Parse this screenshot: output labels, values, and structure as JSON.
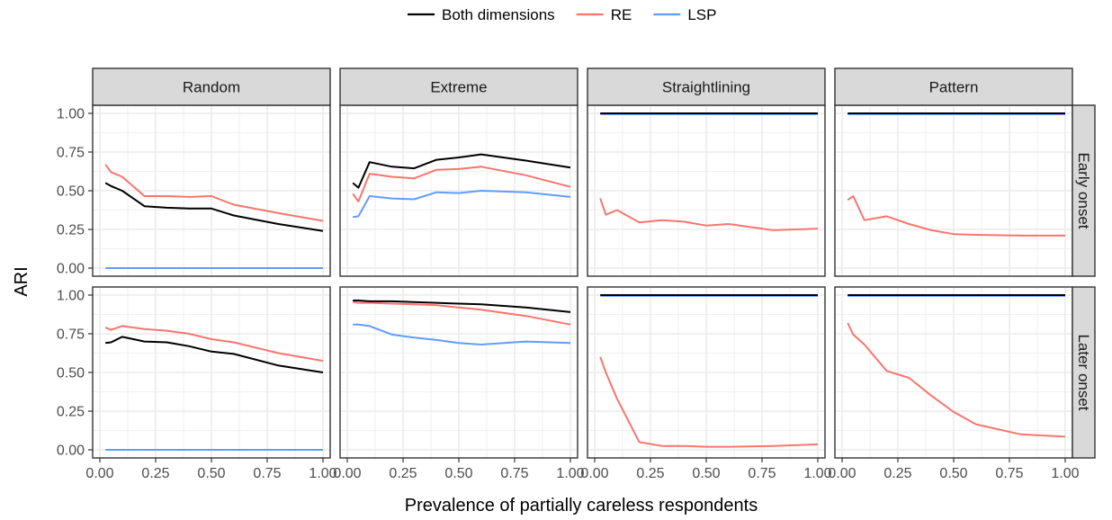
{
  "chart_data": {
    "type": "line",
    "xlabel": "Prevalence of partially careless respondents",
    "ylabel": "ARI",
    "xlim": [
      0,
      1
    ],
    "ylim": [
      0,
      1
    ],
    "x_ticks": [
      "0.00",
      "0.25",
      "0.50",
      "0.75",
      "1.00"
    ],
    "y_ticks": [
      "0.00",
      "0.25",
      "0.50",
      "0.75",
      "1.00"
    ],
    "grid": true,
    "legend_position": "top",
    "legend": [
      {
        "name": "Both dimensions",
        "color": "#000000"
      },
      {
        "name": "RE",
        "color": "#F8766D"
      },
      {
        "name": "LSP",
        "color": "#619CFF"
      }
    ],
    "columns": [
      "Random",
      "Extreme",
      "Straightlining",
      "Pattern"
    ],
    "rows": [
      "Early onset",
      "Later onset"
    ],
    "x": [
      0.025,
      0.05,
      0.1,
      0.2,
      0.3,
      0.4,
      0.5,
      0.6,
      0.8,
      1.0
    ],
    "panels": [
      {
        "row": "Early onset",
        "column": "Random",
        "series": [
          {
            "name": "Both dimensions",
            "values": [
              0.55,
              0.53,
              0.5,
              0.4,
              0.39,
              0.385,
              0.385,
              0.34,
              0.285,
              0.24
            ]
          },
          {
            "name": "RE",
            "values": [
              0.67,
              0.62,
              0.59,
              0.465,
              0.465,
              0.46,
              0.465,
              0.41,
              0.355,
              0.305
            ]
          },
          {
            "name": "LSP",
            "values": [
              0.0,
              0.0,
              0.0,
              0.0,
              0.0,
              0.0,
              0.0,
              0.0,
              0.0,
              0.0
            ]
          }
        ]
      },
      {
        "row": "Early onset",
        "column": "Extreme",
        "series": [
          {
            "name": "Both dimensions",
            "values": [
              0.55,
              0.52,
              0.685,
              0.655,
              0.645,
              0.7,
              0.715,
              0.735,
              0.695,
              0.65
            ]
          },
          {
            "name": "RE",
            "values": [
              0.48,
              0.43,
              0.61,
              0.59,
              0.58,
              0.635,
              0.64,
              0.655,
              0.6,
              0.525
            ]
          },
          {
            "name": "LSP",
            "values": [
              0.33,
              0.335,
              0.465,
              0.45,
              0.445,
              0.49,
              0.485,
              0.5,
              0.49,
              0.46
            ]
          }
        ]
      },
      {
        "row": "Early onset",
        "column": "Straightlining",
        "series": [
          {
            "name": "Both dimensions",
            "values": [
              1.0,
              1.0,
              1.0,
              1.0,
              1.0,
              1.0,
              1.0,
              1.0,
              1.0,
              1.0
            ]
          },
          {
            "name": "RE",
            "values": [
              0.45,
              0.345,
              0.375,
              0.295,
              0.31,
              0.3,
              0.275,
              0.285,
              0.245,
              0.255
            ]
          },
          {
            "name": "LSP",
            "values": [
              0.995,
              0.995,
              0.995,
              0.995,
              0.995,
              0.995,
              0.995,
              0.995,
              0.995,
              0.995
            ]
          }
        ]
      },
      {
        "row": "Early onset",
        "column": "Pattern",
        "series": [
          {
            "name": "Both dimensions",
            "values": [
              1.0,
              1.0,
              1.0,
              1.0,
              1.0,
              1.0,
              1.0,
              1.0,
              1.0,
              1.0
            ]
          },
          {
            "name": "RE",
            "values": [
              0.44,
              0.465,
              0.31,
              0.335,
              0.285,
              0.245,
              0.22,
              0.215,
              0.21,
              0.21
            ]
          },
          {
            "name": "LSP",
            "values": [
              0.995,
              0.995,
              0.995,
              0.995,
              0.995,
              0.995,
              0.995,
              0.995,
              0.995,
              0.995
            ]
          }
        ]
      },
      {
        "row": "Later onset",
        "column": "Random",
        "series": [
          {
            "name": "Both dimensions",
            "values": [
              0.69,
              0.695,
              0.73,
              0.7,
              0.695,
              0.67,
              0.635,
              0.62,
              0.545,
              0.5
            ]
          },
          {
            "name": "RE",
            "values": [
              0.79,
              0.775,
              0.8,
              0.78,
              0.77,
              0.75,
              0.715,
              0.695,
              0.625,
              0.575
            ]
          },
          {
            "name": "LSP",
            "values": [
              0.0,
              0.0,
              0.0,
              0.0,
              0.0,
              0.0,
              0.0,
              0.0,
              0.0,
              0.0
            ]
          }
        ]
      },
      {
        "row": "Later onset",
        "column": "Extreme",
        "series": [
          {
            "name": "Both dimensions",
            "values": [
              0.965,
              0.965,
              0.96,
              0.96,
              0.955,
              0.95,
              0.945,
              0.94,
              0.92,
              0.89
            ]
          },
          {
            "name": "RE",
            "values": [
              0.955,
              0.95,
              0.95,
              0.945,
              0.94,
              0.935,
              0.92,
              0.905,
              0.865,
              0.81
            ]
          },
          {
            "name": "LSP",
            "values": [
              0.81,
              0.81,
              0.8,
              0.745,
              0.725,
              0.71,
              0.69,
              0.68,
              0.7,
              0.69
            ]
          }
        ]
      },
      {
        "row": "Later onset",
        "column": "Straightlining",
        "series": [
          {
            "name": "Both dimensions",
            "values": [
              1.0,
              1.0,
              1.0,
              1.0,
              1.0,
              1.0,
              1.0,
              1.0,
              1.0,
              1.0
            ]
          },
          {
            "name": "RE",
            "values": [
              0.6,
              0.5,
              0.33,
              0.05,
              0.025,
              0.025,
              0.02,
              0.02,
              0.025,
              0.035
            ]
          },
          {
            "name": "LSP",
            "values": [
              0.995,
              0.995,
              0.995,
              0.995,
              0.995,
              0.995,
              0.995,
              0.995,
              0.995,
              0.995
            ]
          }
        ]
      },
      {
        "row": "Later onset",
        "column": "Pattern",
        "series": [
          {
            "name": "Both dimensions",
            "values": [
              1.0,
              1.0,
              1.0,
              1.0,
              1.0,
              1.0,
              1.0,
              1.0,
              1.0,
              1.0
            ]
          },
          {
            "name": "RE",
            "values": [
              0.82,
              0.745,
              0.68,
              0.51,
              0.465,
              0.35,
              0.245,
              0.165,
              0.1,
              0.085
            ]
          },
          {
            "name": "LSP",
            "values": [
              0.995,
              0.995,
              0.995,
              0.995,
              0.995,
              0.995,
              0.995,
              0.995,
              0.995,
              0.995
            ]
          }
        ]
      }
    ]
  }
}
